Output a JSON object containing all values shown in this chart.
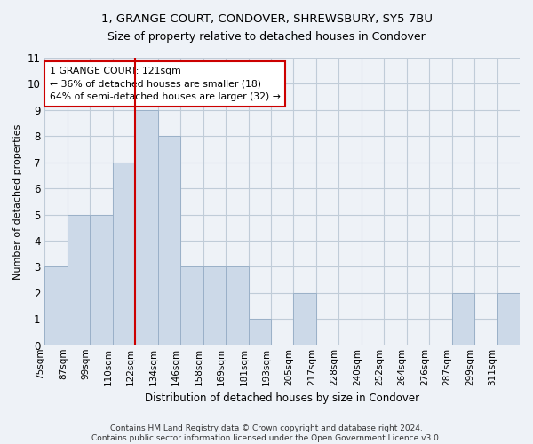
{
  "title": "1, GRANGE COURT, CONDOVER, SHREWSBURY, SY5 7BU",
  "subtitle": "Size of property relative to detached houses in Condover",
  "xlabel": "Distribution of detached houses by size in Condover",
  "ylabel": "Number of detached properties",
  "categories": [
    "75sqm",
    "87sqm",
    "99sqm",
    "110sqm",
    "122sqm",
    "134sqm",
    "146sqm",
    "158sqm",
    "169sqm",
    "181sqm",
    "193sqm",
    "205sqm",
    "217sqm",
    "228sqm",
    "240sqm",
    "252sqm",
    "264sqm",
    "276sqm",
    "287sqm",
    "299sqm",
    "311sqm"
  ],
  "values": [
    3,
    5,
    5,
    7,
    9,
    8,
    3,
    3,
    3,
    1,
    0,
    2,
    0,
    0,
    0,
    0,
    0,
    0,
    2,
    0,
    2
  ],
  "bar_color": "#ccd9e8",
  "bar_edge_color": "#9ab0c8",
  "vline_index": 4,
  "ylim": [
    0,
    11
  ],
  "yticks": [
    0,
    1,
    2,
    3,
    4,
    5,
    6,
    7,
    8,
    9,
    10,
    11
  ],
  "annotation_text": "1 GRANGE COURT: 121sqm\n← 36% of detached houses are smaller (18)\n64% of semi-detached houses are larger (32) →",
  "annotation_box_color": "#ffffff",
  "annotation_box_edge": "#cc0000",
  "vline_color": "#cc0000",
  "footer_line1": "Contains HM Land Registry data © Crown copyright and database right 2024.",
  "footer_line2": "Contains public sector information licensed under the Open Government Licence v3.0.",
  "background_color": "#eef2f7",
  "plot_background": "#eef2f7",
  "grid_color": "#c0ccd8",
  "title_fontsize": 9.5,
  "subtitle_fontsize": 9,
  "ylabel_fontsize": 8,
  "xlabel_fontsize": 8.5,
  "tick_fontsize": 7.5,
  "ytick_fontsize": 8.5,
  "footer_fontsize": 6.5
}
